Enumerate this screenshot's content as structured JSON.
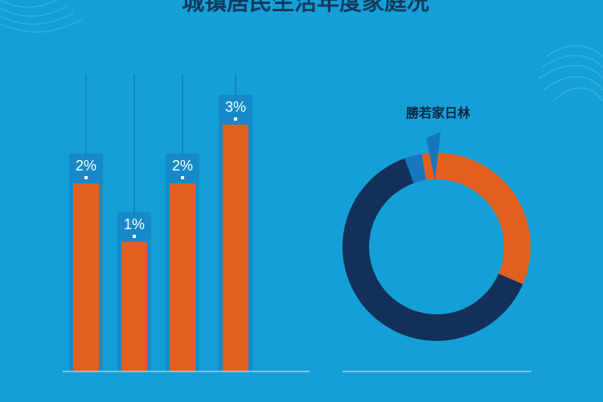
{
  "header": {
    "title": "城镇居民生活年度家庭况"
  },
  "chart_data": [
    {
      "type": "bar",
      "categories": [
        "",
        "",
        "",
        ""
      ],
      "values": [
        2,
        1,
        2,
        3
      ],
      "data_labels": [
        "2%",
        "1%",
        "2%",
        "3%"
      ],
      "ylim": [
        0,
        3
      ],
      "grid": false,
      "colors": {
        "bar": "#e2601f",
        "bar_shadow": "#1783c4",
        "axis": "#d9eefb",
        "label": "#ffffff"
      }
    },
    {
      "type": "pie",
      "title": "勝若家日林",
      "values": [
        34,
        63,
        3
      ],
      "colors": [
        "#e2601f",
        "#13305a",
        "#1677bd"
      ],
      "donut": true
    }
  ]
}
